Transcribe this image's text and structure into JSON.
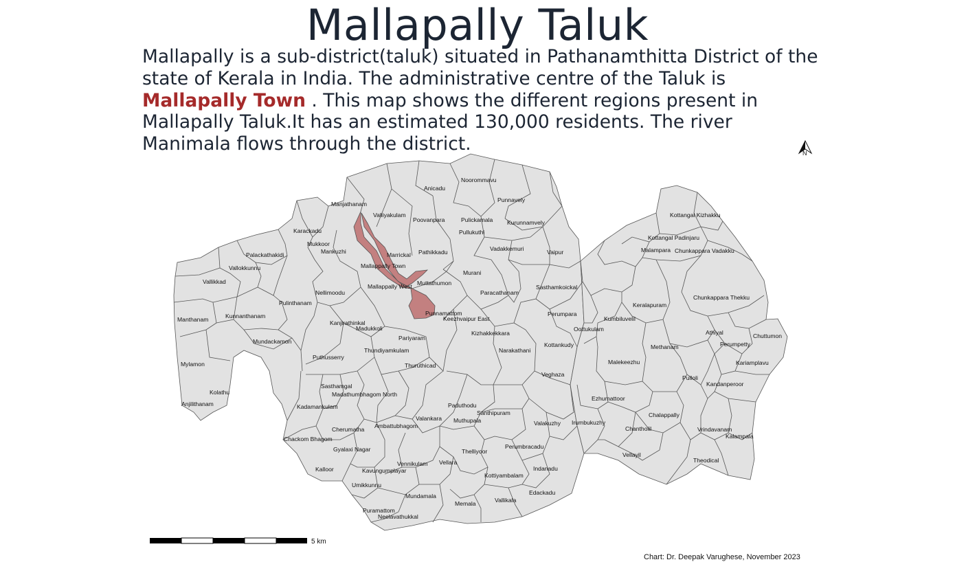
{
  "title": "Mallapally Taluk",
  "description": {
    "part1": "Mallapally is a sub-district(taluk) situated in Pathanamthitta District of the state of Kerala in India. The administrative centre of the Taluk is ",
    "highlight": "Mallapally Town",
    "part2": " . This map shows the different regions present in Mallapally Taluk.It has an estimated 130,000 residents. The river Manimala flows through the district."
  },
  "colors": {
    "highlight_text": "#a52a2a",
    "town_fill": "#c38080",
    "region_fill": "#e2e2e2",
    "region_stroke": "#555555"
  },
  "north_arrow": {
    "label": "N",
    "icon": "north-arrow-icon"
  },
  "scale_bar": {
    "label": "5 km"
  },
  "credit": "Chart: Dr. Deepak Varughese, November 2023",
  "highlighted_region": "Mallappally Town",
  "regions": [
    "Noorommavu",
    "Anicadu",
    "Punnavely",
    "Manjathanam",
    "Valliyakulam",
    "Poovanpara",
    "Pulickamala",
    "Kurunnamvely",
    "Pullukuthi",
    "Karackadu",
    "Mukkoor",
    "Palackathakidi",
    "Mankuzhi",
    "Marrickal",
    "Pathikkadu",
    "Vadakkemuri",
    "Vaipur",
    "Vallokkunnu",
    "Mallappally Town",
    "Vallikkad",
    "Mallappally West",
    "Murani",
    "Muttathumon",
    "Nellimoodu",
    "Sasthamkoickal",
    "Paracathanam",
    "Pulinthanam",
    "Punnamattom",
    "Keezhvaipur East",
    "Manthanam",
    "Kunnanthanam",
    "Kanjirathinkal",
    "Madukkoli",
    "Perumpara",
    "Kumbiluvelil",
    "Oottukulam",
    "Pariyaram",
    "Kizhakkekkara",
    "Mundackamon",
    "Kottankudy",
    "Narakathani",
    "Thundiyamkulam",
    "Puthusserry",
    "Malekeezhu",
    "Mylamon",
    "Thuruthicad",
    "Veghaza",
    "Sasthamgal",
    "Madathumbhagom North",
    "Kolathu",
    "Kadamankulam",
    "Paduthodu",
    "Ezhumattoor",
    "Anjilithanam",
    "Santhipuram",
    "Valankara",
    "Muthupala",
    "Valakuzhy",
    "Irumbukuzhy",
    "Ambattubhagom",
    "Cherumatha",
    "Chackom Bhagom",
    "Gyalaxi Nagar",
    "Thelliyoor",
    "Perumbracadu",
    "Vellara",
    "Vennikulam",
    "Kalloor",
    "Kavungumplayar",
    "Indanadu",
    "Kottiyambalam",
    "Umikkunnu",
    "Edackadu",
    "Mundamala",
    "Vallikala",
    "Memala",
    "Puramattom",
    "Neelavathukkal",
    "Kottangal Kizhakku",
    "Kottangal Padinjaru",
    "Malampara",
    "Chunkappara Vadakku",
    "Chunkappara Thekku",
    "Keralapuram",
    "Athiyal",
    "Chuttumon",
    "Perumpetty",
    "Methanam",
    "Kariamplavu",
    "Pulloli",
    "Kandanperoor",
    "Chalappally",
    "Chantholil",
    "Vrindavanam",
    "Kalampala",
    "Vellayil",
    "Theodical"
  ]
}
